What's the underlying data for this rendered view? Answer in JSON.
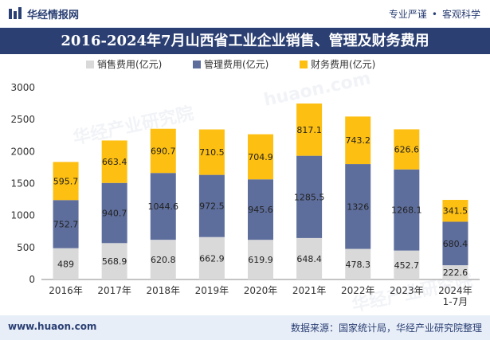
{
  "header": {
    "brand": "华经情报网",
    "tag1": "专业严谨",
    "sep": "•",
    "tag2": "客观科学"
  },
  "footer": {
    "site": "www.huaon.com",
    "source": "数据来源：国家统计局，华经产业研究院整理"
  },
  "colors": {
    "sales": "#d9d9d9",
    "management": "#5e6e9c",
    "finance": "#fdbf11",
    "title_bg": "#2b3f72"
  },
  "chart_data": {
    "type": "bar",
    "stacked": true,
    "title": "2016-2024年7月山西省工业企业销售、管理及财务费用",
    "categories": [
      "2016年",
      "2017年",
      "2018年",
      "2019年",
      "2020年",
      "2021年",
      "2022年",
      "2023年",
      "2024年\n1-7月"
    ],
    "series": [
      {
        "name": "销售费用(亿元)",
        "values": [
          489,
          568.9,
          620.8,
          662.9,
          619.9,
          648.4,
          478.3,
          452.7,
          222.6
        ],
        "labels": [
          "489",
          "568.9",
          "620.8",
          "662.9",
          "619.9",
          "648.4",
          "478.3",
          "452.7",
          "222.6"
        ]
      },
      {
        "name": "管理费用(亿元)",
        "values": [
          752.7,
          940.7,
          1044.6,
          972.5,
          945.6,
          1285.5,
          1326,
          1268.1,
          680.4
        ],
        "labels": [
          "752.7",
          "940.7",
          "1044.6",
          "972.5",
          "945.6",
          "1285.5",
          "1326",
          "1268.1",
          "680.4"
        ]
      },
      {
        "name": "财务费用(亿元)",
        "values": [
          595.7,
          663.4,
          690.7,
          710.5,
          704.9,
          817.1,
          743.2,
          626.6,
          341.5
        ],
        "labels": [
          "595.7",
          "663.4",
          "690.7",
          "710.5",
          "704.9",
          "817.1",
          "743.2",
          "626.6",
          "341.5"
        ]
      }
    ],
    "yticks": [
      "0",
      "500",
      "1000",
      "1500",
      "2000",
      "2500",
      "3000"
    ],
    "ylim": [
      0,
      3000
    ],
    "legend": "top",
    "grid": false
  }
}
